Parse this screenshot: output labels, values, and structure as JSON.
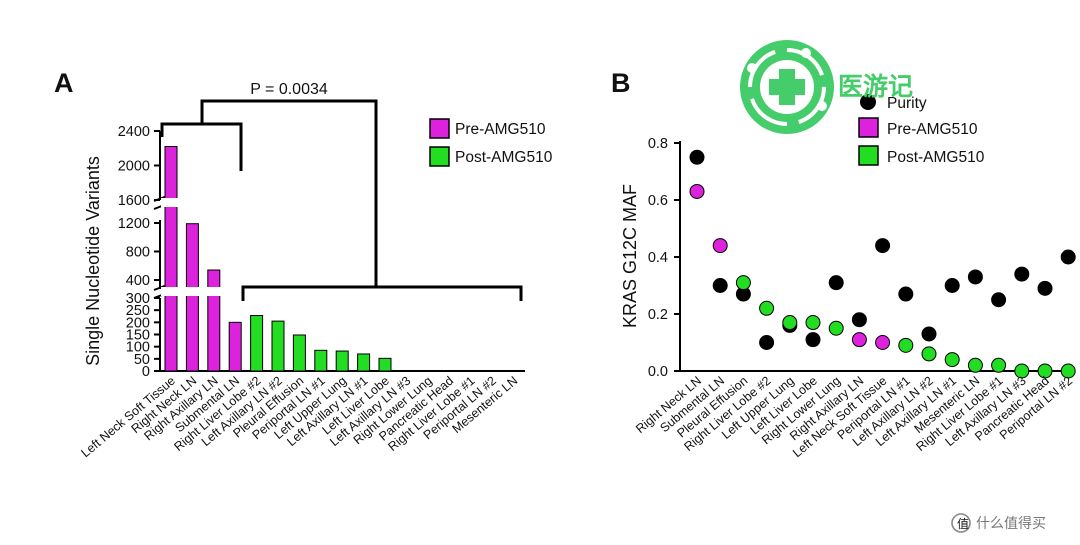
{
  "panel_a": {
    "letter": "A",
    "p_value": "P = 0.0034"
  },
  "panel_b": {
    "letter": "B"
  },
  "colors": {
    "pre": "#dd22dd",
    "post": "#22dd22",
    "purity": "#000000"
  },
  "watermark": {
    "brand": "医游记",
    "site": "什么值得买"
  },
  "chart_data": [
    {
      "type": "bar",
      "panel": "A",
      "ylabel": "Single Nucleotide Variants",
      "ylim": [
        0,
        2400
      ],
      "yaxis_breaks": [
        [
          300,
          400
        ],
        [
          1200,
          1600
        ]
      ],
      "yticks": [
        "0",
        "50",
        "100",
        "150",
        "200",
        "250",
        "300",
        "400",
        "800",
        "1200",
        "1600",
        "2000",
        "2400"
      ],
      "legend_position": "top-right",
      "categories": [
        "Left Neck Soft Tissue",
        "Right Neck LN",
        "Right Axillary LN",
        "Submental LN",
        "Right Liver Lobe #2",
        "Left Axillary LN #2",
        "Pleural Effusion",
        "Periportal LN #1",
        "Left Upper Lung",
        "Left Axillary LN #1",
        "Left Liver Lobe",
        "Left Axillary LN #3",
        "Right Lower Lung",
        "Pancreatic Head",
        "Right Liver Lobe #1",
        "Periportal LN #2",
        "Mesenteric LN"
      ],
      "series": [
        {
          "name": "Pre-AMG510",
          "values": [
            2220,
            1190,
            540,
            200,
            null,
            null,
            null,
            null,
            null,
            null,
            null,
            null,
            null,
            null,
            null,
            null,
            null
          ]
        },
        {
          "name": "Post-AMG510",
          "values": [
            null,
            null,
            null,
            null,
            228,
            205,
            148,
            85,
            82,
            70,
            52,
            0,
            0,
            0,
            0,
            0,
            0
          ]
        }
      ]
    },
    {
      "type": "scatter",
      "panel": "B",
      "ylabel": "KRAS G12C MAF",
      "ylim": [
        0,
        0.8
      ],
      "yticks": [
        "0.0",
        "0.2",
        "0.4",
        "0.6",
        "0.8"
      ],
      "legend_position": "top-center",
      "categories": [
        "Right Neck LN",
        "Submental LN",
        "Pleural Effusion",
        "Right Liver Lobe #2",
        "Left Upper Lung",
        "Left Liver Lobe",
        "Right Lower Lung",
        "Right Axillary LN",
        "Left Neck Soft Tissue",
        "Periportal LN #1",
        "Left Axillary LN #2",
        "Left Axillary LN #1",
        "Mesenteric LN",
        "Right Liver Lobe #1",
        "Left Axillary LN #3",
        "Pancreatic Head",
        "Periportal LN #2"
      ],
      "series": [
        {
          "name": "Purity",
          "values": [
            0.75,
            0.3,
            0.27,
            0.1,
            0.16,
            0.11,
            0.31,
            0.18,
            0.44,
            0.27,
            0.13,
            0.3,
            0.33,
            0.25,
            0.34,
            0.29,
            0.4
          ]
        },
        {
          "name": "Pre-AMG510",
          "values": [
            0.63,
            0.44,
            null,
            null,
            null,
            null,
            null,
            0.11,
            0.1,
            null,
            null,
            null,
            null,
            null,
            null,
            null,
            null
          ]
        },
        {
          "name": "Post-AMG510",
          "values": [
            null,
            null,
            0.31,
            0.22,
            0.17,
            0.17,
            0.15,
            null,
            null,
            0.09,
            0.06,
            0.04,
            0.02,
            0.02,
            0.0,
            0.0,
            0.0
          ]
        }
      ]
    }
  ]
}
